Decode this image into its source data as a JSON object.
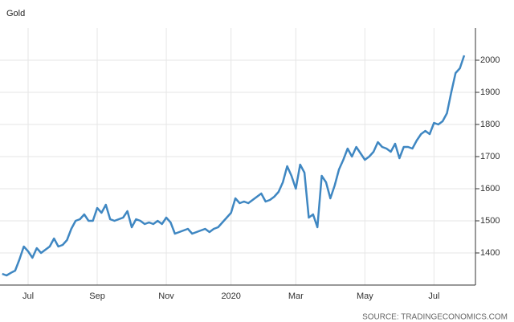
{
  "chart_data": {
    "type": "line",
    "title": "Gold",
    "source": "SOURCE: TRADINGECONOMICS.COM",
    "categories": [
      null,
      null,
      null,
      null,
      null,
      null,
      "Jul",
      null,
      null,
      null,
      null,
      null,
      null,
      null,
      null,
      null,
      null,
      null,
      null,
      null,
      null,
      null,
      "Sep",
      null,
      null,
      null,
      null,
      null,
      null,
      null,
      null,
      null,
      null,
      null,
      null,
      null,
      null,
      null,
      "Nov",
      null,
      null,
      null,
      null,
      null,
      null,
      null,
      null,
      null,
      null,
      null,
      null,
      null,
      null,
      "2020",
      null,
      null,
      null,
      null,
      null,
      null,
      null,
      null,
      null,
      null,
      null,
      null,
      null,
      null,
      "Mar",
      null,
      null,
      null,
      null,
      null,
      null,
      null,
      null,
      null,
      null,
      null,
      null,
      null,
      null,
      null,
      "May",
      null,
      null,
      null,
      null,
      null,
      null,
      null,
      null,
      null,
      null,
      null,
      null,
      null,
      null,
      null,
      "Jul",
      null,
      null,
      null,
      null,
      null,
      null,
      null
    ],
    "series": [
      {
        "name": "Gold",
        "color": "#3f87c2",
        "values": [
          1335,
          1330,
          1338,
          1345,
          1380,
          1420,
          1405,
          1385,
          1415,
          1400,
          1410,
          1420,
          1445,
          1420,
          1425,
          1440,
          1475,
          1500,
          1505,
          1520,
          1500,
          1500,
          1540,
          1525,
          1550,
          1505,
          1500,
          1505,
          1510,
          1530,
          1480,
          1505,
          1500,
          1490,
          1495,
          1490,
          1500,
          1490,
          1510,
          1495,
          1460,
          1465,
          1470,
          1475,
          1460,
          1465,
          1470,
          1475,
          1465,
          1475,
          1480,
          1495,
          1510,
          1525,
          1570,
          1555,
          1560,
          1555,
          1565,
          1575,
          1585,
          1560,
          1565,
          1575,
          1590,
          1620,
          1670,
          1640,
          1600,
          1675,
          1650,
          1510,
          1520,
          1480,
          1640,
          1620,
          1570,
          1610,
          1660,
          1690,
          1725,
          1700,
          1730,
          1710,
          1690,
          1700,
          1715,
          1745,
          1730,
          1725,
          1715,
          1740,
          1695,
          1730,
          1730,
          1725,
          1750,
          1770,
          1780,
          1770,
          1805,
          1800,
          1810,
          1835,
          1900,
          1960,
          1975,
          2015
        ]
      }
    ],
    "ylim": [
      1300,
      2100
    ],
    "yticks": [
      1400,
      1500,
      1600,
      1700,
      1800,
      1900,
      2000
    ],
    "y_axis_side": "right",
    "grid": true
  }
}
